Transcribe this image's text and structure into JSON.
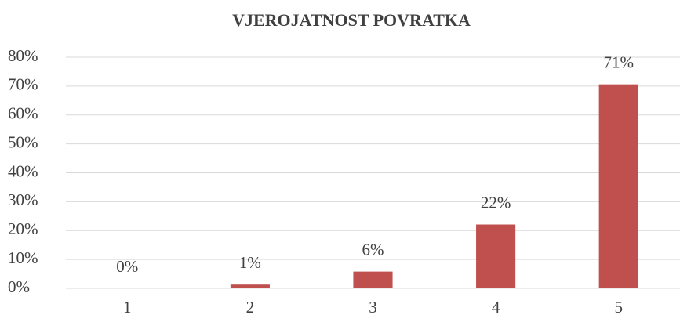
{
  "chart_data": {
    "type": "bar",
    "title": "VJEROJATNOST POVRATKA",
    "categories": [
      "1",
      "2",
      "3",
      "4",
      "5"
    ],
    "values": [
      0,
      1.3,
      5.8,
      22.1,
      70.6
    ],
    "value_labels": [
      "0%",
      "1%",
      "6%",
      "22%",
      "71%"
    ],
    "color": "#c0504d",
    "ylim": [
      0,
      80
    ],
    "yticks": [
      {
        "value": 0,
        "label": "0%"
      },
      {
        "value": 10,
        "label": "10%"
      },
      {
        "value": 20,
        "label": "20%"
      },
      {
        "value": 30,
        "label": "30%"
      },
      {
        "value": 40,
        "label": "40%"
      },
      {
        "value": 50,
        "label": "50%"
      },
      {
        "value": 60,
        "label": "60%"
      },
      {
        "value": 70,
        "label": "70%"
      },
      {
        "value": 80,
        "label": "80%"
      }
    ],
    "grid": true
  }
}
